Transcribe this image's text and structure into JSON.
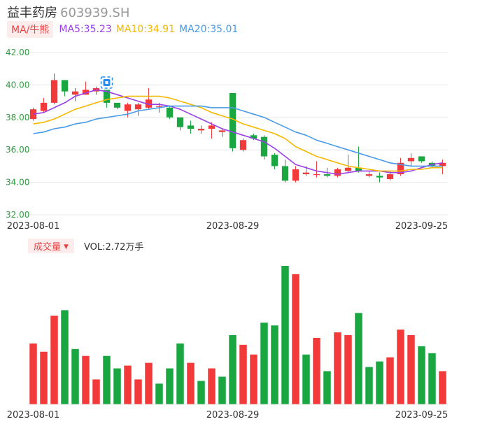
{
  "header": {
    "stock_name": "益丰药房",
    "stock_code": "603939.SH"
  },
  "ma_legend": {
    "button_label": "MA/牛熊",
    "items": [
      {
        "label": "MA5:35.23",
        "color": "#9b3fe8"
      },
      {
        "label": "MA10:34.91",
        "color": "#f5b800"
      },
      {
        "label": "MA20:35.01",
        "color": "#4a9be8"
      }
    ]
  },
  "volume_header": {
    "button_label": "成交量",
    "value_text": "VOL:2.72万手"
  },
  "colors": {
    "up": "#f23a3a",
    "down": "#1aa641",
    "grid": "#e8e8e8",
    "axis_text": "#2e9e3e",
    "date_text": "#333333",
    "marker": "#2a8cf0"
  },
  "icons": {
    "marker": "target-marker-icon"
  },
  "chart_data": [
    {
      "type": "candlestick",
      "y_ticks": [
        "42.00",
        "40.00",
        "38.00",
        "36.00",
        "34.00",
        "32.00"
      ],
      "ylim": [
        32,
        42
      ],
      "x_tick_labels": [
        {
          "label": "2023-08-01",
          "index": 0
        },
        {
          "label": "2023-08-29",
          "index": 19
        },
        {
          "label": "2023-09-25",
          "index": 37
        }
      ],
      "candles": [
        {
          "o": 37.9,
          "h": 38.6,
          "l": 37.8,
          "c": 38.5
        },
        {
          "o": 38.4,
          "h": 39.2,
          "l": 38.3,
          "c": 38.9
        },
        {
          "o": 38.9,
          "h": 40.7,
          "l": 38.8,
          "c": 40.3
        },
        {
          "o": 40.3,
          "h": 40.3,
          "l": 39.3,
          "c": 39.6
        },
        {
          "o": 39.4,
          "h": 39.8,
          "l": 39.0,
          "c": 39.6
        },
        {
          "o": 39.4,
          "h": 40.2,
          "l": 39.4,
          "c": 39.7
        },
        {
          "o": 39.6,
          "h": 39.9,
          "l": 39.4,
          "c": 39.8
        },
        {
          "o": 39.7,
          "h": 39.7,
          "l": 38.6,
          "c": 38.9
        },
        {
          "o": 38.9,
          "h": 38.9,
          "l": 38.5,
          "c": 38.6
        },
        {
          "o": 38.4,
          "h": 38.9,
          "l": 38.0,
          "c": 38.8
        },
        {
          "o": 38.5,
          "h": 38.9,
          "l": 38.1,
          "c": 38.8
        },
        {
          "o": 38.6,
          "h": 39.8,
          "l": 38.5,
          "c": 39.1
        },
        {
          "o": 38.7,
          "h": 38.9,
          "l": 38.3,
          "c": 38.7
        },
        {
          "o": 38.6,
          "h": 38.7,
          "l": 37.9,
          "c": 38.0
        },
        {
          "o": 38.0,
          "h": 38.0,
          "l": 37.2,
          "c": 37.4
        },
        {
          "o": 37.5,
          "h": 37.8,
          "l": 37.0,
          "c": 37.3
        },
        {
          "o": 37.2,
          "h": 37.5,
          "l": 37.0,
          "c": 37.3
        },
        {
          "o": 37.3,
          "h": 37.7,
          "l": 36.7,
          "c": 37.5
        },
        {
          "o": 37.1,
          "h": 37.3,
          "l": 36.8,
          "c": 37.2
        },
        {
          "o": 39.5,
          "h": 39.5,
          "l": 35.9,
          "c": 36.1
        },
        {
          "o": 36.0,
          "h": 36.7,
          "l": 35.9,
          "c": 36.6
        },
        {
          "o": 36.9,
          "h": 37.0,
          "l": 36.6,
          "c": 36.7
        },
        {
          "o": 36.8,
          "h": 36.9,
          "l": 35.4,
          "c": 35.6
        },
        {
          "o": 35.7,
          "h": 35.8,
          "l": 34.8,
          "c": 35.0
        },
        {
          "o": 35.0,
          "h": 35.4,
          "l": 34.0,
          "c": 34.1
        },
        {
          "o": 34.1,
          "h": 35.0,
          "l": 34.0,
          "c": 34.8
        },
        {
          "o": 34.5,
          "h": 35.0,
          "l": 34.4,
          "c": 34.6
        },
        {
          "o": 34.5,
          "h": 35.3,
          "l": 34.3,
          "c": 34.5
        },
        {
          "o": 34.5,
          "h": 34.9,
          "l": 34.3,
          "c": 34.4
        },
        {
          "o": 34.4,
          "h": 34.9,
          "l": 34.3,
          "c": 34.8
        },
        {
          "o": 34.7,
          "h": 35.7,
          "l": 34.6,
          "c": 34.9
        },
        {
          "o": 34.9,
          "h": 36.2,
          "l": 34.6,
          "c": 34.7
        },
        {
          "o": 34.4,
          "h": 34.7,
          "l": 34.3,
          "c": 34.5
        },
        {
          "o": 34.4,
          "h": 34.6,
          "l": 34.0,
          "c": 34.3
        },
        {
          "o": 34.2,
          "h": 34.7,
          "l": 34.1,
          "c": 34.5
        },
        {
          "o": 34.5,
          "h": 35.5,
          "l": 34.4,
          "c": 35.2
        },
        {
          "o": 35.3,
          "h": 35.8,
          "l": 35.0,
          "c": 35.5
        },
        {
          "o": 35.6,
          "h": 35.6,
          "l": 35.2,
          "c": 35.3
        },
        {
          "o": 35.2,
          "h": 35.3,
          "l": 34.9,
          "c": 35.0
        },
        {
          "o": 35.0,
          "h": 35.4,
          "l": 34.5,
          "c": 35.2
        }
      ],
      "ma_lines": [
        {
          "name": "MA5",
          "color": "#9b3fe8",
          "values": [
            38.2,
            38.3,
            38.6,
            38.9,
            39.3,
            39.5,
            39.7,
            39.6,
            39.4,
            39.2,
            39.0,
            38.8,
            38.8,
            38.7,
            38.5,
            38.2,
            37.9,
            37.6,
            37.3,
            37.1,
            36.9,
            36.7,
            36.5,
            36.1,
            35.6,
            35.1,
            34.9,
            34.7,
            34.6,
            34.5,
            34.6,
            34.7,
            34.7,
            34.7,
            34.6,
            34.6,
            34.7,
            34.9,
            35.1,
            35.2
          ]
        },
        {
          "name": "MA10",
          "color": "#f5b800",
          "values": [
            37.6,
            37.7,
            37.9,
            38.2,
            38.5,
            38.7,
            38.9,
            39.1,
            39.2,
            39.3,
            39.3,
            39.3,
            39.3,
            39.2,
            39.0,
            38.8,
            38.6,
            38.3,
            38.1,
            37.9,
            37.6,
            37.4,
            37.2,
            37.0,
            36.7,
            36.2,
            35.9,
            35.6,
            35.4,
            35.2,
            35.0,
            34.9,
            34.8,
            34.7,
            34.7,
            34.7,
            34.8,
            34.8,
            34.9,
            34.9
          ]
        },
        {
          "name": "MA20",
          "color": "#4a9be8",
          "values": [
            37.0,
            37.1,
            37.3,
            37.4,
            37.6,
            37.7,
            37.9,
            38.0,
            38.1,
            38.2,
            38.4,
            38.5,
            38.6,
            38.7,
            38.7,
            38.7,
            38.7,
            38.6,
            38.6,
            38.6,
            38.4,
            38.2,
            38.0,
            37.7,
            37.4,
            37.1,
            36.9,
            36.6,
            36.4,
            36.2,
            36.0,
            35.8,
            35.6,
            35.4,
            35.2,
            35.1,
            35.0,
            35.0,
            35.0,
            35.0
          ]
        }
      ]
    },
    {
      "type": "bar",
      "name": "成交量",
      "ylim": [
        0,
        100
      ],
      "x_tick_labels": [
        {
          "label": "2023-08-01",
          "index": 0
        },
        {
          "label": "2023-08-29",
          "index": 19
        },
        {
          "label": "2023-09-25",
          "index": 37
        }
      ],
      "values": [
        44,
        38,
        64,
        68,
        40,
        35,
        18,
        35,
        26,
        28,
        18,
        30,
        15,
        26,
        44,
        30,
        17,
        26,
        20,
        50,
        43,
        36,
        59,
        57,
        100,
        94,
        36,
        48,
        24,
        52,
        50,
        66,
        27,
        31,
        34,
        54,
        50,
        42,
        37,
        24
      ],
      "directions": [
        "up",
        "up",
        "up",
        "down",
        "down",
        "up",
        "up",
        "down",
        "down",
        "up",
        "up",
        "up",
        "down",
        "down",
        "down",
        "up",
        "down",
        "up",
        "down",
        "down",
        "up",
        "up",
        "down",
        "down",
        "down",
        "up",
        "down",
        "up",
        "down",
        "up",
        "up",
        "down",
        "down",
        "down",
        "up",
        "up",
        "up",
        "down",
        "down",
        "up"
      ]
    }
  ]
}
